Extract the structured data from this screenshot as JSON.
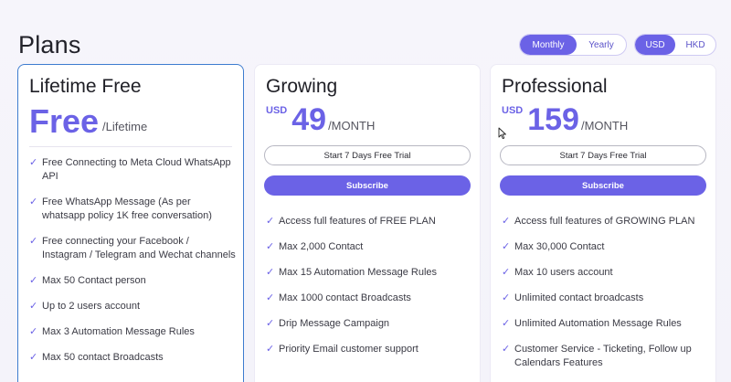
{
  "page": {
    "title": "Plans"
  },
  "toggles": {
    "period": {
      "options": [
        "Monthly",
        "Yearly"
      ],
      "selected": "Monthly"
    },
    "currency": {
      "options": [
        "USD",
        "HKD"
      ],
      "selected": "USD"
    }
  },
  "plans": [
    {
      "name": "Lifetime Free",
      "price": "Free",
      "period": "/Lifetime",
      "features": [
        "Free Connecting to Meta Cloud WhatsApp API",
        "Free WhatsApp Message (As per whatsapp policy 1K free conversation)",
        "Free connecting your Facebook / Instagram / Telegram and Wechat channels",
        "Max 50 Contact person",
        "Up to 2 users account",
        "Max 3 Automation Message Rules",
        "Max 50 contact Broadcasts"
      ]
    },
    {
      "name": "Growing",
      "currency": "USD",
      "price": "49",
      "period": "/MONTH",
      "trial_label": "Start 7 Days Free Trial",
      "subscribe_label": "Subscribe",
      "features": [
        "Access full features of FREE PLAN",
        "Max 2,000 Contact",
        "Max 15 Automation Message Rules",
        "Max 1000 contact Broadcasts",
        "Drip Message Campaign",
        "Priority Email customer support"
      ]
    },
    {
      "name": "Professional",
      "currency": "USD",
      "price": "159",
      "period": "/MONTH",
      "trial_label": "Start 7 Days Free Trial",
      "subscribe_label": "Subscribe",
      "features": [
        "Access full features of GROWING PLAN",
        "Max 30,000 Contact",
        "Max 10 users account",
        "Unlimited contact broadcasts",
        "Unlimited Automation Message Rules",
        "Customer Service - Ticketing, Follow up Calendars Features"
      ]
    }
  ],
  "icons": {
    "check": "check-icon",
    "cursor": "mouse-cursor-icon"
  },
  "colors": {
    "accent": "#6b62e6",
    "selected_border": "#3d7ccf"
  }
}
